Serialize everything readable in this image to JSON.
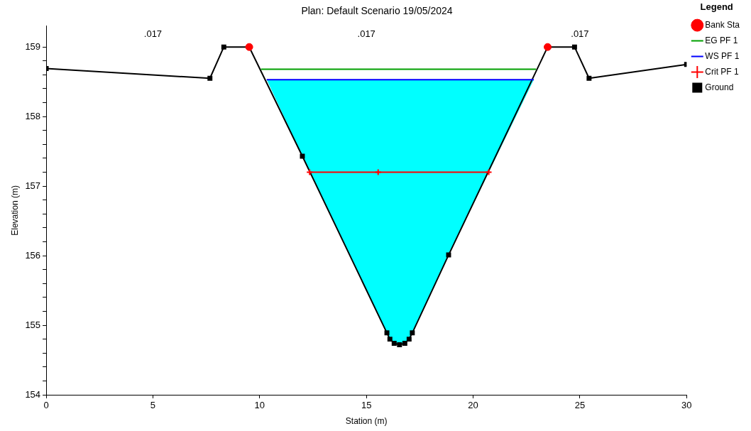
{
  "chart_data": {
    "type": "line",
    "title": "Plan: Default Scenario 19/05/2024",
    "xlabel": "Station (m)",
    "ylabel": "Elevation (m)",
    "legend_title": "Legend",
    "legend": "top right",
    "xlim": [
      0,
      30
    ],
    "xticks": [
      0,
      5,
      10,
      15,
      20,
      25,
      30
    ],
    "ylim": [
      154,
      159.3
    ],
    "yticks": [
      154,
      {
        "value": 154.2,
        "label": null
      },
      {
        "value": 154.4,
        "label": null
      },
      {
        "value": 154.6,
        "label": null
      },
      {
        "value": 154.8,
        "label": null
      },
      155,
      {
        "value": 155.2,
        "label": null
      },
      {
        "value": 155.4,
        "label": null
      },
      {
        "value": 155.6,
        "label": null
      },
      {
        "value": 155.8,
        "label": null
      },
      156,
      {
        "value": 156.2,
        "label": null
      },
      {
        "value": 156.4,
        "label": null
      },
      {
        "value": 156.6,
        "label": null
      },
      {
        "value": 156.8,
        "label": null
      },
      157,
      {
        "value": 157.2,
        "label": null
      },
      {
        "value": 157.4,
        "label": null
      },
      {
        "value": 157.6,
        "label": null
      },
      {
        "value": 157.8,
        "label": null
      },
      158,
      {
        "value": 158.2,
        "label": null
      },
      {
        "value": 158.4,
        "label": null
      },
      {
        "value": 158.6,
        "label": null
      },
      {
        "value": 158.8,
        "label": null
      },
      159
    ],
    "grid": false,
    "annotations": [
      ".017",
      ".017",
      ".017"
    ],
    "series": [
      {
        "name": "EG PF 1",
        "type": "line",
        "color": "#00a000",
        "x": [
          10.06,
          22.95
        ],
        "values": [
          158.68,
          158.68
        ],
        "marker": "none"
      },
      {
        "name": "WS PF 1",
        "type": "line",
        "color": "#0000ff",
        "x": [
          10.33,
          12.0,
          15.96,
          16.1,
          16.3,
          16.55,
          16.8,
          17.0,
          17.15,
          18.85,
          22.84
        ],
        "values": [
          158.53,
          158.53,
          158.53,
          158.53,
          158.53,
          158.53,
          158.53,
          158.53,
          158.53,
          158.53,
          158.53
        ],
        "lower": [
          158.53,
          157.43,
          154.89,
          154.8,
          154.74,
          154.72,
          154.74,
          154.8,
          154.89,
          156.01,
          158.53
        ],
        "upper": [
          158.53,
          158.53,
          158.53,
          158.53,
          158.53,
          158.53,
          158.53,
          158.53,
          158.53,
          158.53,
          158.53
        ],
        "marker": "none"
      },
      {
        "name": "Crit PF 1",
        "type": "line",
        "color": "#ff0000",
        "x": [
          12.34,
          15.55,
          20.73
        ],
        "values": [
          157.2,
          157.2,
          157.2
        ],
        "marker": "cross"
      },
      {
        "name": "Ground",
        "type": "line",
        "color": "#000000",
        "x": [
          0,
          7.67,
          8.32,
          9.51,
          12.0,
          15.96,
          16.1,
          16.3,
          16.55,
          16.8,
          17.0,
          17.15,
          18.85,
          23.49,
          24.75,
          25.43,
          30
        ],
        "values": [
          158.69,
          158.55,
          159.0,
          159.0,
          157.43,
          154.89,
          154.8,
          154.74,
          154.72,
          154.74,
          154.8,
          154.89,
          156.01,
          159.0,
          159.0,
          158.55,
          158.75
        ],
        "marker": "square"
      },
      {
        "name": "Bank Sta",
        "type": "scatter",
        "color": "#ff0000",
        "x": [
          9.51,
          23.49
        ],
        "values": [
          159.0,
          159.0
        ],
        "marker": "circle"
      }
    ]
  }
}
